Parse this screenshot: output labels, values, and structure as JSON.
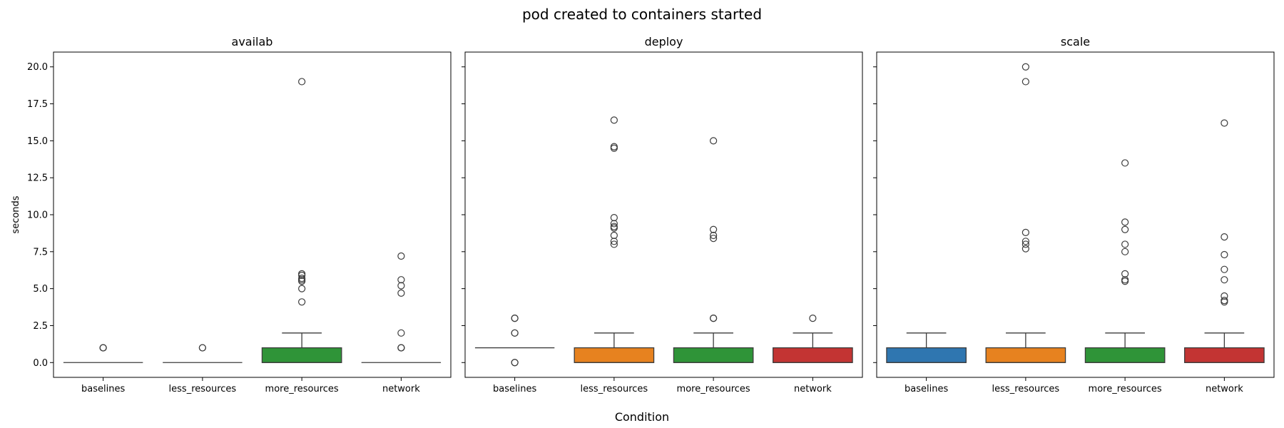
{
  "chart_data": {
    "type": "boxplot",
    "title": "pod created to containers started",
    "xlabel": "Condition",
    "ylabel": "seconds",
    "ylim": [
      -1,
      21
    ],
    "yticks": [
      0.0,
      2.5,
      5.0,
      7.5,
      10.0,
      12.5,
      15.0,
      17.5,
      20.0
    ],
    "ytick_labels": [
      "0.0",
      "2.5",
      "5.0",
      "7.5",
      "10.0",
      "12.5",
      "15.0",
      "17.5",
      "20.0"
    ],
    "categories": [
      "baselines",
      "less_resources",
      "more_resources",
      "network"
    ],
    "palette": {
      "baselines": "#2f76b0",
      "less_resources": "#e7821f",
      "more_resources": "#2f9438",
      "network": "#c33433"
    },
    "panels": [
      {
        "name": "availab",
        "boxes": [
          {
            "category": "baselines",
            "q1": 0,
            "median": 0,
            "q3": 0,
            "whisker_low": 0,
            "whisker_high": 0,
            "outliers": [
              1.0,
              1.0,
              1.0
            ]
          },
          {
            "category": "less_resources",
            "q1": 0,
            "median": 0,
            "q3": 0,
            "whisker_low": 0,
            "whisker_high": 0,
            "outliers": [
              1.0,
              1.0
            ]
          },
          {
            "category": "more_resources",
            "q1": 0,
            "median": 0,
            "q3": 1,
            "whisker_low": 0,
            "whisker_high": 2,
            "outliers": [
              4.1,
              5.0,
              5.5,
              5.6,
              5.7,
              5.9,
              6.0,
              19.0
            ]
          },
          {
            "category": "network",
            "q1": 0,
            "median": 0,
            "q3": 0,
            "whisker_low": 0,
            "whisker_high": 0,
            "outliers": [
              1.0,
              1.0,
              1.0,
              2.0,
              4.7,
              5.2,
              5.6,
              7.2
            ]
          }
        ]
      },
      {
        "name": "deploy",
        "boxes": [
          {
            "category": "baselines",
            "q1": 1,
            "median": 1,
            "q3": 1,
            "whisker_low": 1,
            "whisker_high": 1,
            "outliers": [
              0.0,
              0.0,
              2.0,
              2.0,
              3.0,
              3.0
            ]
          },
          {
            "category": "less_resources",
            "q1": 0,
            "median": 0,
            "q3": 1,
            "whisker_low": 0,
            "whisker_high": 2,
            "outliers": [
              8.0,
              8.2,
              8.6,
              9.1,
              9.2,
              9.4,
              9.8,
              14.5,
              14.6,
              16.4
            ]
          },
          {
            "category": "more_resources",
            "q1": 0,
            "median": 0,
            "q3": 1,
            "whisker_low": 0,
            "whisker_high": 2,
            "outliers": [
              3.0,
              3.0,
              8.4,
              8.6,
              9.0,
              15.0
            ]
          },
          {
            "category": "network",
            "q1": 0,
            "median": 0,
            "q3": 1,
            "whisker_low": 0,
            "whisker_high": 2,
            "outliers": [
              3.0
            ]
          }
        ]
      },
      {
        "name": "scale",
        "boxes": [
          {
            "category": "baselines",
            "q1": 0,
            "median": 0,
            "q3": 1,
            "whisker_low": 0,
            "whisker_high": 2,
            "outliers": []
          },
          {
            "category": "less_resources",
            "q1": 0,
            "median": 0,
            "q3": 1,
            "whisker_low": 0,
            "whisker_high": 2,
            "outliers": [
              7.7,
              8.0,
              8.2,
              8.8,
              19.0,
              20.0
            ]
          },
          {
            "category": "more_resources",
            "q1": 0,
            "median": 0,
            "q3": 1,
            "whisker_low": 0,
            "whisker_high": 2,
            "outliers": [
              5.5,
              5.6,
              6.0,
              7.5,
              8.0,
              9.0,
              9.5,
              13.5
            ]
          },
          {
            "category": "network",
            "q1": 0,
            "median": 0,
            "q3": 1,
            "whisker_low": 0,
            "whisker_high": 2,
            "outliers": [
              4.1,
              4.2,
              4.5,
              5.6,
              6.3,
              7.3,
              8.5,
              16.2
            ]
          }
        ]
      }
    ]
  }
}
